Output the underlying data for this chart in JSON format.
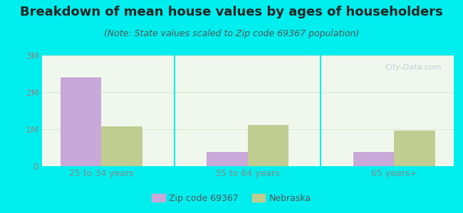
{
  "title": "Breakdown of mean house values by ages of householders",
  "subtitle": "(Note: State values scaled to Zip code 69367 population)",
  "categories": [
    "25 to 34 years",
    "35 to 64 years",
    "65 years+"
  ],
  "zip_values": [
    2400000,
    380000,
    380000
  ],
  "state_values": [
    1080000,
    1120000,
    970000
  ],
  "zip_color": "#c8a8d8",
  "state_color": "#c0cc90",
  "background_color": "#00eeee",
  "plot_bg": "#f0f8ee",
  "ylim": [
    0,
    3000000
  ],
  "yticks": [
    0,
    1000000,
    2000000,
    3000000
  ],
  "ytick_labels": [
    "0",
    "1M",
    "2M",
    "3M"
  ],
  "bar_width": 0.28,
  "legend_zip_label": "Zip code 69367",
  "legend_state_label": "Nebraska",
  "watermark": "City-Data.com",
  "title_fontsize": 13,
  "subtitle_fontsize": 9,
  "tick_fontsize": 9,
  "legend_fontsize": 9,
  "divider_color": "#00eeee",
  "grid_color": "#d8e8d0"
}
